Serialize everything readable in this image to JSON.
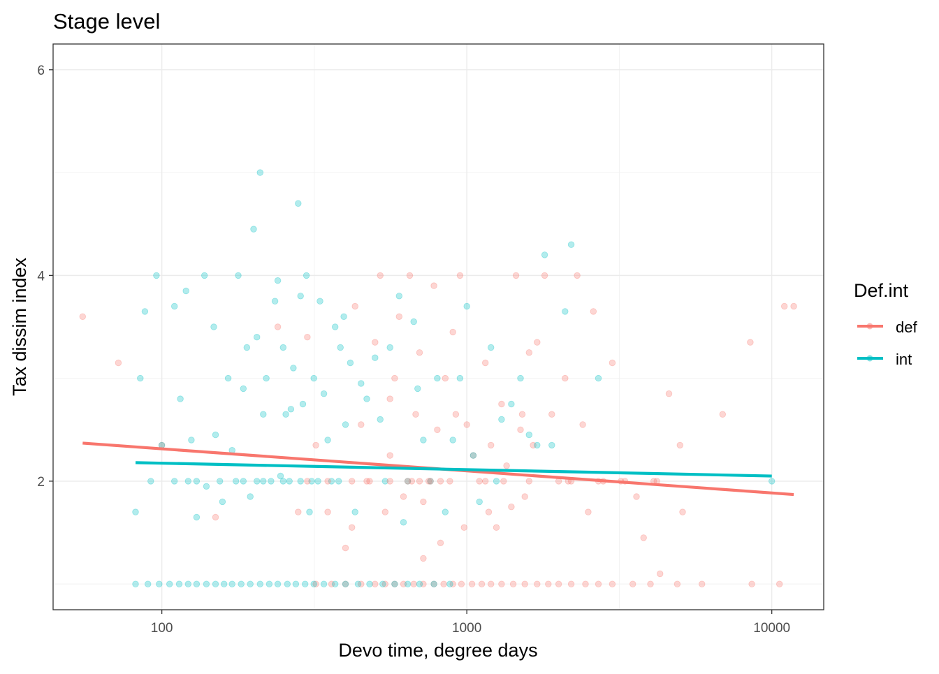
{
  "chart_data": {
    "type": "scatter",
    "title": "Stage level",
    "xlabel": "Devo time, degree days",
    "ylabel": "Tax dissim index",
    "x_scale": "log10",
    "xlim": [
      44,
      14800
    ],
    "ylim": [
      0.75,
      6.25
    ],
    "x_ticks": [
      100,
      1000,
      10000
    ],
    "x_tick_labels": [
      "100",
      "1000",
      "10000"
    ],
    "y_ticks": [
      2,
      4,
      6
    ],
    "y_tick_labels": [
      "2",
      "4",
      "6"
    ],
    "grid": true,
    "legend": {
      "title": "Def.int",
      "position": "right"
    },
    "series": [
      {
        "name": "def",
        "color": "#F8766D",
        "points": [
          [
            55,
            3.6
          ],
          [
            72,
            3.15
          ],
          [
            100,
            2.35
          ],
          [
            150,
            1.65
          ],
          [
            240,
            3.5
          ],
          [
            280,
            1.7
          ],
          [
            300,
            3.4
          ],
          [
            320,
            2.35
          ],
          [
            350,
            1.7
          ],
          [
            400,
            1.35
          ],
          [
            420,
            1.55
          ],
          [
            450,
            2.55
          ],
          [
            470,
            2.0
          ],
          [
            500,
            3.35
          ],
          [
            520,
            4.0
          ],
          [
            540,
            1.7
          ],
          [
            560,
            2.25
          ],
          [
            580,
            3.0
          ],
          [
            600,
            3.6
          ],
          [
            620,
            1.85
          ],
          [
            650,
            4.0
          ],
          [
            680,
            2.65
          ],
          [
            700,
            3.25
          ],
          [
            720,
            1.25
          ],
          [
            750,
            2.0
          ],
          [
            780,
            3.9
          ],
          [
            800,
            2.5
          ],
          [
            820,
            1.4
          ],
          [
            850,
            3.0
          ],
          [
            880,
            2.0
          ],
          [
            900,
            3.45
          ],
          [
            920,
            2.65
          ],
          [
            950,
            4.0
          ],
          [
            980,
            1.55
          ],
          [
            1000,
            2.55
          ],
          [
            1050,
            2.25
          ],
          [
            1100,
            2.0
          ],
          [
            1150,
            3.15
          ],
          [
            1200,
            2.35
          ],
          [
            1250,
            1.55
          ],
          [
            1300,
            2.75
          ],
          [
            1350,
            2.15
          ],
          [
            1400,
            1.75
          ],
          [
            1450,
            4.0
          ],
          [
            1500,
            2.5
          ],
          [
            1550,
            1.85
          ],
          [
            1600,
            3.25
          ],
          [
            1650,
            2.35
          ],
          [
            1700,
            3.35
          ],
          [
            1800,
            4.0
          ],
          [
            1900,
            2.65
          ],
          [
            2000,
            2.0
          ],
          [
            2100,
            3.0
          ],
          [
            2300,
            4.0
          ],
          [
            2500,
            1.7
          ],
          [
            2600,
            3.65
          ],
          [
            2800,
            2.0
          ],
          [
            3000,
            3.15
          ],
          [
            3300,
            2.0
          ],
          [
            3600,
            1.85
          ],
          [
            3800,
            1.45
          ],
          [
            4100,
            2.0
          ],
          [
            4300,
            1.1
          ],
          [
            4600,
            2.85
          ],
          [
            5000,
            2.35
          ],
          [
            5100,
            1.7
          ],
          [
            6900,
            2.65
          ],
          [
            8500,
            3.35
          ],
          [
            11000,
            3.7
          ],
          [
            11800,
            3.7
          ],
          [
            720,
            1.8
          ],
          [
            430,
            3.7
          ],
          [
            560,
            2.8
          ],
          [
            660,
            2.0
          ],
          [
            1180,
            1.7
          ],
          [
            1520,
            2.65
          ],
          [
            2150,
            2.0
          ],
          [
            2400,
            2.55
          ]
        ]
      },
      {
        "name": "int",
        "color": "#00BFC4",
        "points": [
          [
            82,
            1.7
          ],
          [
            85,
            3.0
          ],
          [
            88,
            3.65
          ],
          [
            92,
            2.0
          ],
          [
            96,
            4.0
          ],
          [
            100,
            2.35
          ],
          [
            110,
            3.7
          ],
          [
            115,
            2.8
          ],
          [
            120,
            3.85
          ],
          [
            122,
            2.0
          ],
          [
            125,
            2.4
          ],
          [
            130,
            1.65
          ],
          [
            138,
            4.0
          ],
          [
            148,
            3.5
          ],
          [
            150,
            2.45
          ],
          [
            158,
            1.8
          ],
          [
            165,
            3.0
          ],
          [
            170,
            2.3
          ],
          [
            178,
            4.0
          ],
          [
            185,
            2.9
          ],
          [
            190,
            3.3
          ],
          [
            195,
            1.85
          ],
          [
            200,
            4.45
          ],
          [
            205,
            3.4
          ],
          [
            210,
            5.0
          ],
          [
            215,
            2.65
          ],
          [
            220,
            3.0
          ],
          [
            228,
            2.0
          ],
          [
            235,
            3.75
          ],
          [
            240,
            3.95
          ],
          [
            250,
            3.3
          ],
          [
            255,
            2.65
          ],
          [
            262,
            2.0
          ],
          [
            270,
            3.1
          ],
          [
            280,
            4.7
          ],
          [
            285,
            3.8
          ],
          [
            290,
            2.75
          ],
          [
            298,
            4.0
          ],
          [
            305,
            1.7
          ],
          [
            315,
            3.0
          ],
          [
            330,
            3.75
          ],
          [
            340,
            2.85
          ],
          [
            350,
            2.4
          ],
          [
            360,
            2.0
          ],
          [
            370,
            3.5
          ],
          [
            385,
            3.3
          ],
          [
            400,
            2.55
          ],
          [
            415,
            3.15
          ],
          [
            430,
            1.7
          ],
          [
            450,
            2.95
          ],
          [
            470,
            2.8
          ],
          [
            500,
            3.2
          ],
          [
            520,
            2.6
          ],
          [
            560,
            3.3
          ],
          [
            600,
            3.8
          ],
          [
            620,
            1.6
          ],
          [
            640,
            2.0
          ],
          [
            670,
            3.55
          ],
          [
            690,
            2.9
          ],
          [
            720,
            2.4
          ],
          [
            760,
            2.0
          ],
          [
            800,
            3.0
          ],
          [
            850,
            1.7
          ],
          [
            900,
            2.4
          ],
          [
            950,
            3.0
          ],
          [
            1000,
            3.7
          ],
          [
            1050,
            2.25
          ],
          [
            1100,
            1.8
          ],
          [
            1200,
            3.3
          ],
          [
            1300,
            2.6
          ],
          [
            1400,
            2.75
          ],
          [
            1500,
            3.0
          ],
          [
            1600,
            2.45
          ],
          [
            1700,
            2.35
          ],
          [
            1800,
            4.2
          ],
          [
            1900,
            2.35
          ],
          [
            2100,
            3.65
          ],
          [
            2200,
            4.3
          ],
          [
            2700,
            3.0
          ],
          [
            10000,
            2.0
          ],
          [
            140,
            1.95
          ],
          [
            175,
            2.0
          ],
          [
            205,
            2.0
          ],
          [
            245,
            2.05
          ],
          [
            265,
            2.7
          ],
          [
            310,
            2.0
          ],
          [
            395,
            3.6
          ],
          [
            540,
            2.0
          ],
          [
            1250,
            2.0
          ]
        ]
      },
      {
        "name": "def",
        "color": "#F8766D",
        "points": [
          [
            320,
            1.0
          ],
          [
            360,
            1.0
          ],
          [
            400,
            1.0
          ],
          [
            450,
            1.0
          ],
          [
            500,
            1.0
          ],
          [
            540,
            1.0
          ],
          [
            580,
            1.0
          ],
          [
            620,
            1.0
          ],
          [
            670,
            1.0
          ],
          [
            720,
            1.0
          ],
          [
            780,
            1.0
          ],
          [
            840,
            1.0
          ],
          [
            900,
            1.0
          ],
          [
            960,
            1.0
          ],
          [
            1040,
            1.0
          ],
          [
            1120,
            1.0
          ],
          [
            1200,
            1.0
          ],
          [
            1300,
            1.0
          ],
          [
            1420,
            1.0
          ],
          [
            1550,
            1.0
          ],
          [
            1700,
            1.0
          ],
          [
            1850,
            1.0
          ],
          [
            2000,
            1.0
          ],
          [
            2200,
            1.0
          ],
          [
            2450,
            1.0
          ],
          [
            2700,
            1.0
          ],
          [
            3000,
            1.0
          ],
          [
            3500,
            1.0
          ],
          [
            4000,
            1.0
          ],
          [
            4900,
            1.0
          ],
          [
            5900,
            1.0
          ],
          [
            8600,
            1.0
          ],
          [
            10600,
            1.0
          ],
          [
            300,
            2.0
          ],
          [
            350,
            2.0
          ],
          [
            420,
            2.0
          ],
          [
            480,
            2.0
          ],
          [
            560,
            2.0
          ],
          [
            640,
            2.0
          ],
          [
            700,
            2.0
          ],
          [
            760,
            2.0
          ],
          [
            820,
            2.0
          ],
          [
            1150,
            2.0
          ],
          [
            1320,
            2.0
          ],
          [
            1600,
            2.0
          ],
          [
            2200,
            2.0
          ],
          [
            2700,
            2.0
          ],
          [
            3200,
            2.0
          ],
          [
            4200,
            2.0
          ]
        ]
      },
      {
        "name": "int",
        "color": "#00BFC4",
        "points": [
          [
            82,
            1.0
          ],
          [
            90,
            1.0
          ],
          [
            98,
            1.0
          ],
          [
            106,
            1.0
          ],
          [
            114,
            1.0
          ],
          [
            122,
            1.0
          ],
          [
            130,
            1.0
          ],
          [
            140,
            1.0
          ],
          [
            150,
            1.0
          ],
          [
            160,
            1.0
          ],
          [
            170,
            1.0
          ],
          [
            182,
            1.0
          ],
          [
            195,
            1.0
          ],
          [
            210,
            1.0
          ],
          [
            225,
            1.0
          ],
          [
            240,
            1.0
          ],
          [
            258,
            1.0
          ],
          [
            275,
            1.0
          ],
          [
            295,
            1.0
          ],
          [
            315,
            1.0
          ],
          [
            340,
            1.0
          ],
          [
            370,
            1.0
          ],
          [
            400,
            1.0
          ],
          [
            440,
            1.0
          ],
          [
            480,
            1.0
          ],
          [
            530,
            1.0
          ],
          [
            580,
            1.0
          ],
          [
            640,
            1.0
          ],
          [
            700,
            1.0
          ],
          [
            780,
            1.0
          ],
          [
            880,
            1.0
          ],
          [
            110,
            2.0
          ],
          [
            130,
            2.0
          ],
          [
            155,
            2.0
          ],
          [
            185,
            2.0
          ],
          [
            215,
            2.0
          ],
          [
            250,
            2.0
          ],
          [
            285,
            2.0
          ],
          [
            325,
            2.0
          ],
          [
            380,
            2.0
          ]
        ]
      }
    ],
    "fit_lines": [
      {
        "name": "def",
        "color": "#F8766D",
        "x": [
          55,
          11800
        ],
        "y": [
          2.37,
          1.87
        ]
      },
      {
        "name": "int",
        "color": "#00BFC4",
        "x": [
          82,
          10000
        ],
        "y": [
          2.18,
          2.05
        ]
      }
    ]
  }
}
